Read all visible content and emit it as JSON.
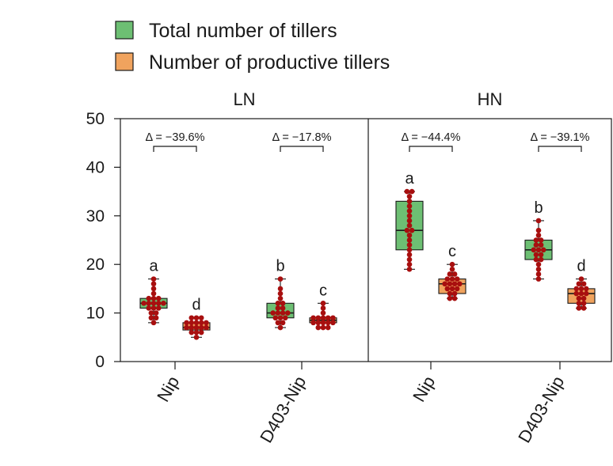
{
  "chart_data": {
    "type": "box",
    "ylim": [
      0,
      50
    ],
    "yticks": [
      0,
      10,
      20,
      30,
      40,
      50
    ],
    "legend": {
      "placement": "top-left",
      "items": [
        {
          "label": "Total number of tillers",
          "color": "#6dbf73"
        },
        {
          "label": "Number of productive tillers",
          "color": "#f0a35e"
        }
      ]
    },
    "panels": [
      {
        "name": "LN",
        "genotypes": [
          {
            "label": "Nip",
            "delta": "Δ = −39.6%",
            "boxes": [
              {
                "series": "Total number of tillers",
                "letter": "a",
                "min": 8,
                "q1": 11,
                "median": 12,
                "q3": 13,
                "max": 17,
                "points": [
                  8,
                  9,
                  9,
                  10,
                  10,
                  11,
                  11,
                  11,
                  12,
                  12,
                  12,
                  12,
                  12,
                  13,
                  13,
                  13,
                  14,
                  15,
                  16,
                  17
                ]
              },
              {
                "series": "Number of productive tillers",
                "letter": "d",
                "min": 5,
                "q1": 6.5,
                "median": 7,
                "q3": 8,
                "max": 9,
                "points": [
                  5,
                  6,
                  6,
                  6,
                  7,
                  7,
                  7,
                  7,
                  7,
                  8,
                  8,
                  8,
                  8,
                  8,
                  9,
                  9,
                  9
                ]
              }
            ]
          },
          {
            "label": "D403-Nip",
            "delta": "Δ = −17.8%",
            "boxes": [
              {
                "series": "Total number of tillers",
                "letter": "b",
                "min": 7,
                "q1": 9,
                "median": 10,
                "q3": 12,
                "max": 17,
                "points": [
                  7,
                  8,
                  8,
                  9,
                  9,
                  9,
                  10,
                  10,
                  10,
                  10,
                  11,
                  11,
                  12,
                  12,
                  13,
                  14,
                  15,
                  17
                ]
              },
              {
                "series": "Number of productive tillers",
                "letter": "c",
                "min": 7,
                "q1": 8,
                "median": 8.5,
                "q3": 9,
                "max": 12,
                "points": [
                  7,
                  7,
                  7,
                  8,
                  8,
                  8,
                  8,
                  8,
                  9,
                  9,
                  9,
                  9,
                  9,
                  10,
                  11,
                  12
                ]
              }
            ]
          }
        ]
      },
      {
        "name": "HN",
        "genotypes": [
          {
            "label": "Nip",
            "delta": "Δ = −44.4%",
            "boxes": [
              {
                "series": "Total number of tillers",
                "letter": "a",
                "min": 19,
                "q1": 23,
                "median": 27,
                "q3": 33,
                "max": 35,
                "points": [
                  19,
                  20,
                  21,
                  22,
                  23,
                  24,
                  25,
                  26,
                  27,
                  27,
                  28,
                  29,
                  30,
                  31,
                  32,
                  33,
                  34,
                  35,
                  35
                ]
              },
              {
                "series": "Number of productive tillers",
                "letter": "c",
                "min": 13,
                "q1": 14,
                "median": 16,
                "q3": 17,
                "max": 20,
                "points": [
                  13,
                  13,
                  14,
                  14,
                  15,
                  15,
                  15,
                  16,
                  16,
                  16,
                  16,
                  17,
                  17,
                  17,
                  18,
                  18,
                  19,
                  20
                ]
              }
            ]
          },
          {
            "label": "D403-Nip",
            "delta": "Δ = −39.1%",
            "boxes": [
              {
                "series": "Total number of tillers",
                "letter": "b",
                "min": 17,
                "q1": 21,
                "median": 23,
                "q3": 25,
                "max": 29,
                "points": [
                  17,
                  18,
                  19,
                  20,
                  21,
                  21,
                  22,
                  22,
                  23,
                  23,
                  23,
                  24,
                  24,
                  25,
                  25,
                  26,
                  27,
                  29
                ]
              },
              {
                "series": "Number of productive tillers",
                "letter": "d",
                "min": 11,
                "q1": 12,
                "median": 14,
                "q3": 15,
                "max": 17,
                "points": [
                  11,
                  11,
                  12,
                  12,
                  13,
                  13,
                  14,
                  14,
                  14,
                  15,
                  15,
                  15,
                  16,
                  16,
                  17
                ]
              }
            ]
          }
        ]
      }
    ],
    "point_color": "#a80f0f",
    "grid": false
  }
}
